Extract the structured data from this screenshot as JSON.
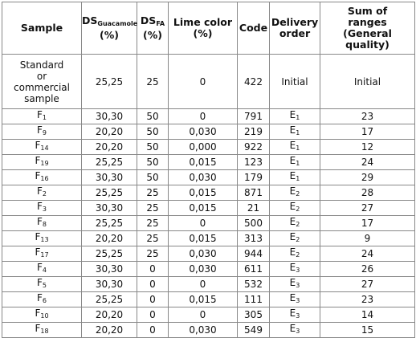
{
  "headers": {
    "sample": "Sample",
    "ds_guac_main": "DS",
    "ds_guac_sub": "Guacamole",
    "ds_guac_unit": "(%)",
    "ds_fa_main": "DS",
    "ds_fa_sub": "FA",
    "ds_fa_unit": "(%)",
    "lime_line1": "Lime color",
    "lime_line2": "(%)",
    "code": "Code",
    "delivery_line1": "Delivery",
    "delivery_line2": "order",
    "sum_line1": "Sum of",
    "sum_line2": "ranges",
    "sum_line3": "(General",
    "sum_line4": "quality)"
  },
  "standard": {
    "sample_lines": [
      "Standard",
      "or",
      "commercial",
      "sample"
    ],
    "ds_guac": "25,25",
    "ds_fa": "25",
    "lime": "0",
    "code": "422",
    "delivery": "Initial",
    "sum": "Initial"
  },
  "rows": [
    {
      "s": "F",
      "sn": "1",
      "dsg": "30,30",
      "dsf": "50",
      "lime": "0",
      "code": "791",
      "d": "E",
      "dn": "1",
      "sum": "23"
    },
    {
      "s": "F",
      "sn": "9",
      "dsg": "20,20",
      "dsf": "50",
      "lime": "0,030",
      "code": "219",
      "d": "E",
      "dn": "1",
      "sum": "17"
    },
    {
      "s": "F",
      "sn": "14",
      "dsg": "20,20",
      "dsf": "50",
      "lime": "0,000",
      "code": "922",
      "d": "E",
      "dn": "1",
      "sum": "12"
    },
    {
      "s": "F",
      "sn": "19",
      "dsg": "25,25",
      "dsf": "50",
      "lime": "0,015",
      "code": "123",
      "d": "E",
      "dn": "1",
      "sum": "24"
    },
    {
      "s": "F",
      "sn": "16",
      "dsg": "30,30",
      "dsf": "50",
      "lime": "0,030",
      "code": "179",
      "d": "E",
      "dn": "1",
      "sum": "29"
    },
    {
      "s": "F",
      "sn": "2",
      "dsg": "25,25",
      "dsf": "25",
      "lime": "0,015",
      "code": "871",
      "d": "E",
      "dn": "2",
      "sum": "28"
    },
    {
      "s": "F",
      "sn": "3",
      "dsg": "30,30",
      "dsf": "25",
      "lime": "0,015",
      "code": "21",
      "d": "E",
      "dn": "2",
      "sum": "27"
    },
    {
      "s": "F",
      "sn": "8",
      "dsg": "25,25",
      "dsf": "25",
      "lime": "0",
      "code": "500",
      "d": "E",
      "dn": "2",
      "sum": "17"
    },
    {
      "s": "F",
      "sn": "13",
      "dsg": "20,20",
      "dsf": "25",
      "lime": "0,015",
      "code": "313",
      "d": "E",
      "dn": "2",
      "sum": "9"
    },
    {
      "s": "F",
      "sn": "17",
      "dsg": "25,25",
      "dsf": "25",
      "lime": "0,030",
      "code": "944",
      "d": "E",
      "dn": "2",
      "sum": "24"
    },
    {
      "s": "F",
      "sn": "4",
      "dsg": "30,30",
      "dsf": "0",
      "lime": "0,030",
      "code": "611",
      "d": "E",
      "dn": "3",
      "sum": "26"
    },
    {
      "s": "F",
      "sn": "5",
      "dsg": "30,30",
      "dsf": "0",
      "lime": "0",
      "code": "532",
      "d": "E",
      "dn": "3",
      "sum": "27"
    },
    {
      "s": "F",
      "sn": "6",
      "dsg": "25,25",
      "dsf": "0",
      "lime": "0,015",
      "code": "111",
      "d": "E",
      "dn": "3",
      "sum": "23"
    },
    {
      "s": "F",
      "sn": "10",
      "dsg": "20,20",
      "dsf": "0",
      "lime": "0",
      "code": "305",
      "d": "E",
      "dn": "3",
      "sum": "14"
    },
    {
      "s": "F",
      "sn": "18",
      "dsg": "20,20",
      "dsf": "0",
      "lime": "0,030",
      "code": "549",
      "d": "E",
      "dn": "3",
      "sum": "15"
    }
  ]
}
